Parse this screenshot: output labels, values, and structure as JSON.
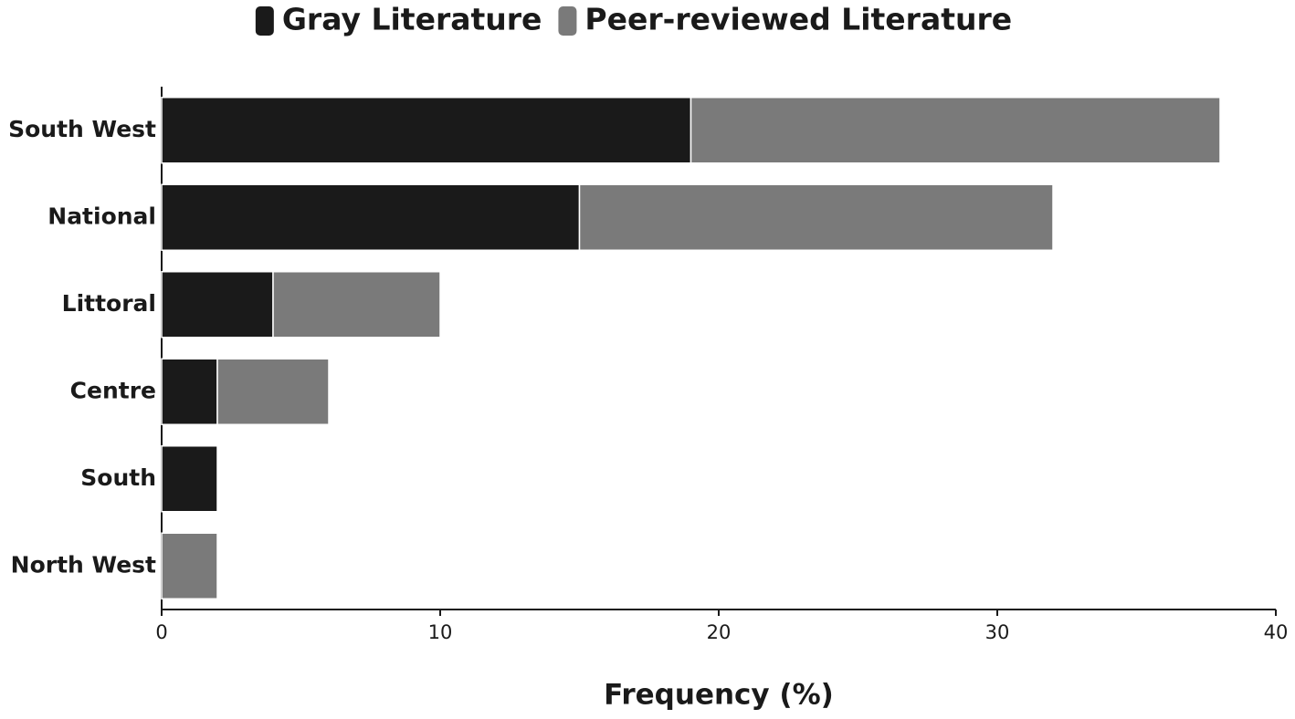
{
  "chart_data": {
    "type": "bar",
    "orientation": "horizontal",
    "stacked": true,
    "categories": [
      "South West",
      "National",
      "Littoral",
      "Centre",
      "South",
      "North West"
    ],
    "series": [
      {
        "name": "Gray Literature",
        "color": "#1a1a1a",
        "values": [
          19,
          15,
          4,
          2,
          2,
          0
        ]
      },
      {
        "name": "Peer-reviewed Literature",
        "color": "#7a7a7a",
        "values": [
          19,
          17,
          6,
          4,
          0,
          2
        ]
      }
    ],
    "xlabel": "Frequency (%)",
    "xlim": [
      0,
      40
    ],
    "xticks": [
      0,
      10,
      20,
      30,
      40
    ],
    "legend": "top"
  }
}
